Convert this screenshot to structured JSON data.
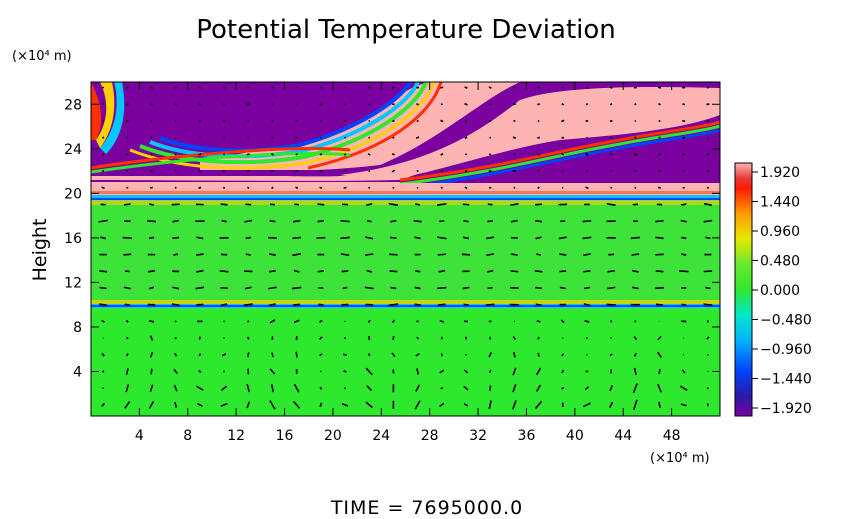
{
  "chart_data": {
    "type": "heatmap",
    "title": "Potential Temperature Deviation",
    "xlabel": "",
    "x_unit": "(×10⁴ m)",
    "ylabel": "Height",
    "y_unit": "(×10⁴ m)",
    "xlim": [
      0,
      52
    ],
    "ylim": [
      0,
      30
    ],
    "x_ticks": [
      4,
      8,
      12,
      16,
      20,
      24,
      28,
      32,
      36,
      40,
      44,
      48
    ],
    "y_ticks": [
      4,
      8,
      12,
      16,
      20,
      24,
      28
    ],
    "colorbar": {
      "min": -1.92,
      "max": 1.92,
      "tick_labels": [
        "1.920",
        "1.440",
        "0.960",
        "0.480",
        "0.000",
        "−0.480",
        "−0.960",
        "−1.440",
        "−1.920"
      ]
    },
    "overlay": "velocity vectors",
    "footer": "TIME = 7695000.0",
    "bands": [
      {
        "y_range": [
          0,
          9.5
        ],
        "value": 0.0
      },
      {
        "y_range": [
          9.5,
          10.2
        ],
        "value": -0.9
      },
      {
        "y_range": [
          10.2,
          19.0
        ],
        "value": 0.1
      },
      {
        "y_range": [
          19.0,
          19.8
        ],
        "value": -0.6
      },
      {
        "y_range": [
          19.8,
          21.0
        ],
        "value": 1.92
      },
      {
        "y_range": [
          21.0,
          30.0
        ],
        "value": -1.92,
        "note": "upper layer alternates between -1.920 and 1.920 in tilted bands"
      }
    ]
  }
}
